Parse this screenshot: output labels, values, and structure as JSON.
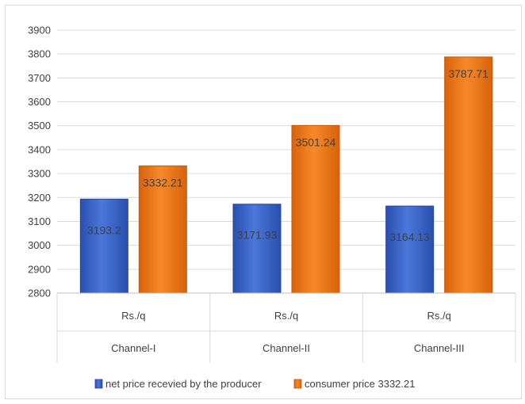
{
  "chart_data": {
    "type": "bar",
    "categories": [
      "Channel-I",
      "Channel-II",
      "Channel-III"
    ],
    "category_sublabel": "Rs./q",
    "series": [
      {
        "name": "net price recevied by the producer",
        "values": [
          3193.2,
          3171.93,
          3164.13
        ],
        "labels": [
          "3193.2",
          "3171.93",
          "3164.13"
        ],
        "color": "#3a64c8"
      },
      {
        "name": "consumer price 3332.21",
        "values": [
          3332.21,
          3501.24,
          3787.71
        ],
        "labels": [
          "3332.21",
          "3501.24",
          "3787.71"
        ],
        "color": "#f07a1a"
      }
    ],
    "ylim": [
      2800,
      3900
    ],
    "yticks": [
      "2800",
      "2900",
      "3000",
      "3100",
      "3200",
      "3300",
      "3400",
      "3500",
      "3600",
      "3700",
      "3800",
      "3900"
    ],
    "grid": true,
    "legend_position": "bottom"
  }
}
